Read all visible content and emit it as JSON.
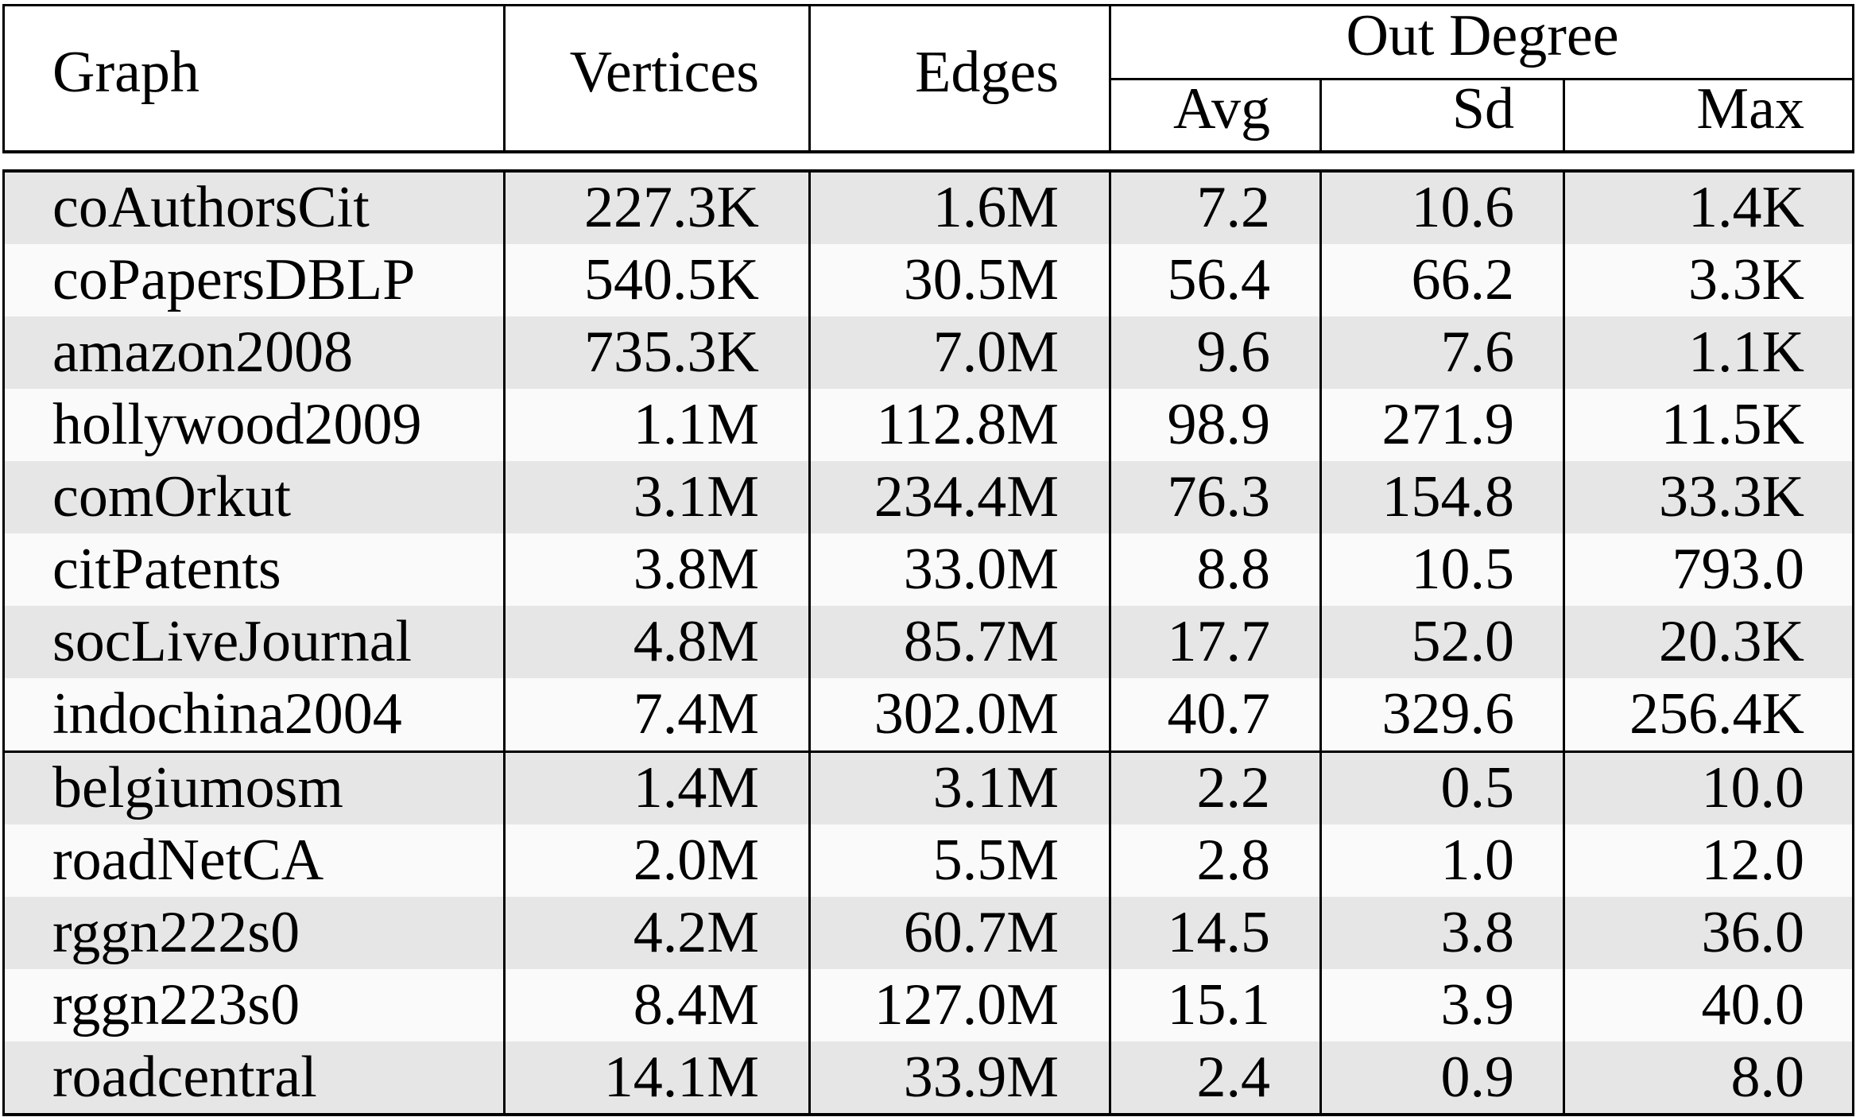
{
  "table": {
    "colors": {
      "band_shaded": "#e6e6e6",
      "band_plain": "#fafafa",
      "rule": "#000000"
    },
    "headers": {
      "graph": "Graph",
      "vertices": "Vertices",
      "edges": "Edges",
      "out_degree": "Out Degree",
      "avg": "Avg",
      "sd": "Sd",
      "max": "Max"
    },
    "groups": [
      {
        "rows": [
          {
            "graph": "coAuthorsCit",
            "vertices": "227.3K",
            "edges": "1.6M",
            "avg": "7.2",
            "sd": "10.6",
            "max": "1.4K"
          },
          {
            "graph": "coPapersDBLP",
            "vertices": "540.5K",
            "edges": "30.5M",
            "avg": "56.4",
            "sd": "66.2",
            "max": "3.3K"
          },
          {
            "graph": "amazon2008",
            "vertices": "735.3K",
            "edges": "7.0M",
            "avg": "9.6",
            "sd": "7.6",
            "max": "1.1K"
          },
          {
            "graph": "hollywood2009",
            "vertices": "1.1M",
            "edges": "112.8M",
            "avg": "98.9",
            "sd": "271.9",
            "max": "11.5K"
          },
          {
            "graph": "comOrkut",
            "vertices": "3.1M",
            "edges": "234.4M",
            "avg": "76.3",
            "sd": "154.8",
            "max": "33.3K"
          },
          {
            "graph": "citPatents",
            "vertices": "3.8M",
            "edges": "33.0M",
            "avg": "8.8",
            "sd": "10.5",
            "max": "793.0"
          },
          {
            "graph": "socLiveJournal",
            "vertices": "4.8M",
            "edges": "85.7M",
            "avg": "17.7",
            "sd": "52.0",
            "max": "20.3K"
          },
          {
            "graph": "indochina2004",
            "vertices": "7.4M",
            "edges": "302.0M",
            "avg": "40.7",
            "sd": "329.6",
            "max": "256.4K"
          }
        ]
      },
      {
        "rows": [
          {
            "graph": "belgiumosm",
            "vertices": "1.4M",
            "edges": "3.1M",
            "avg": "2.2",
            "sd": "0.5",
            "max": "10.0"
          },
          {
            "graph": "roadNetCA",
            "vertices": "2.0M",
            "edges": "5.5M",
            "avg": "2.8",
            "sd": "1.0",
            "max": "12.0"
          },
          {
            "graph": "rggn222s0",
            "vertices": "4.2M",
            "edges": "60.7M",
            "avg": "14.5",
            "sd": "3.8",
            "max": "36.0"
          },
          {
            "graph": "rggn223s0",
            "vertices": "8.4M",
            "edges": "127.0M",
            "avg": "15.1",
            "sd": "3.9",
            "max": "40.0"
          },
          {
            "graph": "roadcentral",
            "vertices": "14.1M",
            "edges": "33.9M",
            "avg": "2.4",
            "sd": "0.9",
            "max": "8.0"
          }
        ]
      }
    ]
  }
}
